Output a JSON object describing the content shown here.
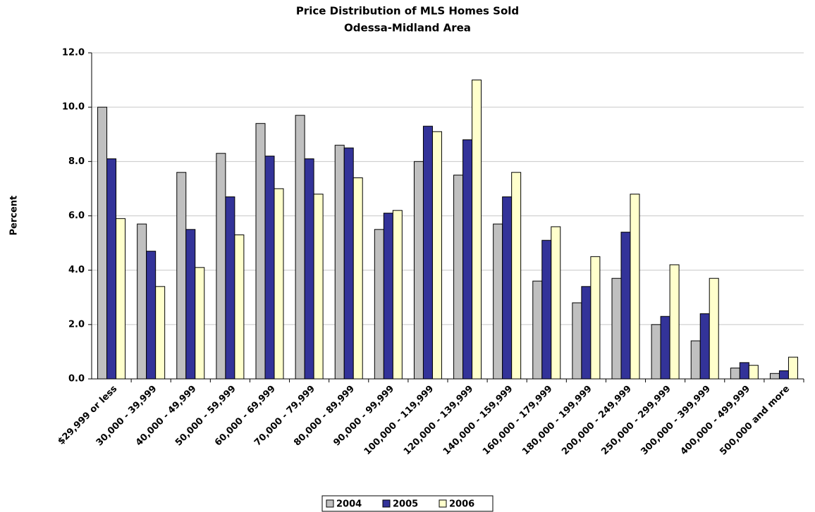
{
  "chart_data": {
    "type": "bar",
    "title": "Price Distribution of MLS Homes Sold",
    "subtitle": "Odessa-Midland Area",
    "y_label": "Percent",
    "categories": [
      "$29,999 or less",
      "30,000 - 39,999",
      "40,000 - 49,999",
      "50,000 - 59,999",
      "60,000 - 69,999",
      "70,000 - 79,999",
      "80,000 - 89,999",
      "90,000 - 99,999",
      "100,000 - 119,999",
      "120,000 - 139,999",
      "140,000 - 159,999",
      "160,000 - 179,999",
      "180,000 - 199,999",
      "200,000 - 249,999",
      "250,000 - 299,999",
      "300,000 - 399,999",
      "400,000 - 499,999",
      "500,000 and more"
    ],
    "series": [
      {
        "name": "2004",
        "color": "#c0c0c0",
        "values": [
          10.0,
          5.7,
          7.6,
          8.3,
          9.4,
          9.7,
          8.6,
          5.5,
          8.0,
          7.5,
          5.7,
          3.6,
          2.8,
          3.7,
          2.0,
          1.4,
          0.4,
          0.2
        ]
      },
      {
        "name": "2005",
        "color": "#333399",
        "values": [
          8.1,
          4.7,
          5.5,
          6.7,
          8.2,
          8.1,
          8.5,
          6.1,
          9.3,
          8.8,
          6.7,
          5.1,
          3.4,
          5.4,
          2.3,
          2.4,
          0.6,
          0.3
        ]
      },
      {
        "name": "2006",
        "color": "#ffffcc",
        "values": [
          5.9,
          3.4,
          4.1,
          5.3,
          7.0,
          6.8,
          7.4,
          6.2,
          9.1,
          11.0,
          7.6,
          5.6,
          4.5,
          6.8,
          4.2,
          3.7,
          0.5,
          0.8
        ]
      }
    ],
    "ylim": [
      0,
      12
    ],
    "yticks": [
      {
        "value": 0,
        "label": "0.0"
      },
      {
        "value": 2,
        "label": "2.0"
      },
      {
        "value": 4,
        "label": "4.0"
      },
      {
        "value": 6,
        "label": "6.0"
      },
      {
        "value": 8,
        "label": "8.0"
      },
      {
        "value": 10,
        "label": "10.0"
      },
      {
        "value": 12,
        "label": "12.0"
      }
    ],
    "grid": true,
    "legend": "bottom"
  }
}
